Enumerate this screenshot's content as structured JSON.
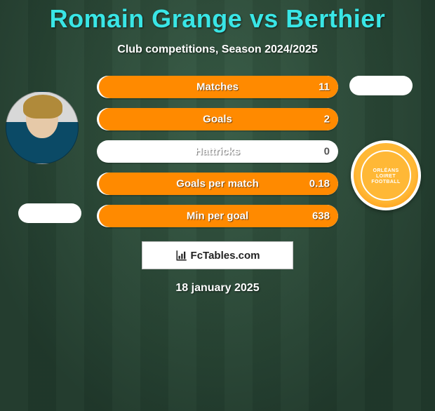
{
  "title": "Romain Grange vs Berthier",
  "subtitle": "Club competitions, Season 2024/2025",
  "date": "18 january 2025",
  "footer_label": "FcTables.com",
  "colors": {
    "accent": "#39e6e6",
    "bar_fill": "#ff8a00",
    "bar_bg": "#ffffff",
    "text": "#ffffff"
  },
  "right_badge": {
    "line1": "ORLÉANS",
    "line2": "LOIRET",
    "line3": "FOOTBALL"
  },
  "stats": [
    {
      "label": "Matches",
      "value": "11",
      "fill_pct": 99
    },
    {
      "label": "Goals",
      "value": "2",
      "fill_pct": 99
    },
    {
      "label": "Hattricks",
      "value": "0",
      "fill_pct": 0
    },
    {
      "label": "Goals per match",
      "value": "0.18",
      "fill_pct": 99
    },
    {
      "label": "Min per goal",
      "value": "638",
      "fill_pct": 99
    }
  ]
}
